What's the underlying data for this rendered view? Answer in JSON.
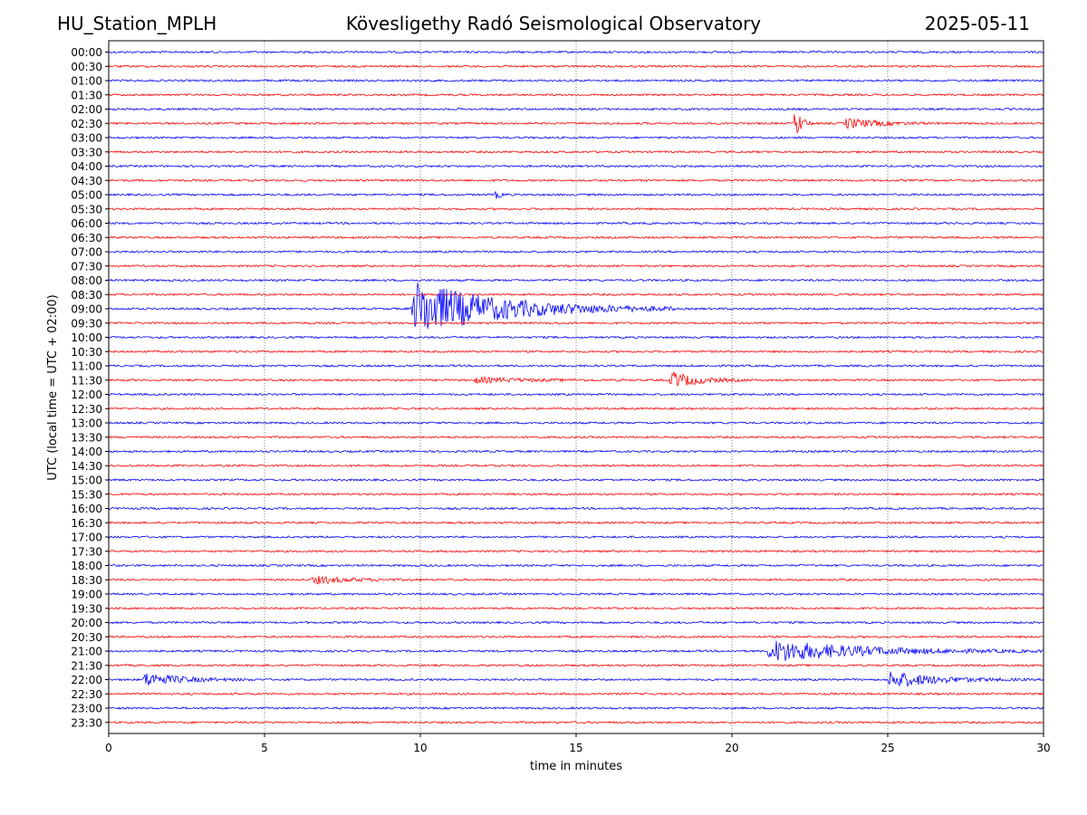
{
  "header": {
    "station": "HU_Station_MPLH",
    "observatory": "Kövesligethy Radó Seismological Observatory",
    "date": "2025-05-11"
  },
  "chart_data": {
    "type": "line",
    "title": "Kövesligethy Radó Seismological Observatory",
    "xlabel": "time in minutes",
    "ylabel": "UTC (local time = UTC + 02:00)",
    "xlim": [
      0,
      30
    ],
    "xticks": [
      0,
      5,
      10,
      15,
      20,
      25,
      30
    ],
    "xgrid": [
      5,
      10,
      15,
      20,
      25
    ],
    "row_colors": [
      "#0000ff",
      "#ff0000"
    ],
    "rows": [
      "00:00",
      "00:30",
      "01:00",
      "01:30",
      "02:00",
      "02:30",
      "03:00",
      "03:30",
      "04:00",
      "04:30",
      "05:00",
      "05:30",
      "06:00",
      "06:30",
      "07:00",
      "07:30",
      "08:00",
      "08:30",
      "09:00",
      "09:30",
      "10:00",
      "10:30",
      "11:00",
      "11:30",
      "12:00",
      "12:30",
      "13:00",
      "13:30",
      "14:00",
      "14:30",
      "15:00",
      "15:30",
      "16:00",
      "16:30",
      "17:00",
      "17:30",
      "18:00",
      "18:30",
      "19:00",
      "19:30",
      "20:00",
      "20:30",
      "21:00",
      "21:30",
      "22:00",
      "22:30",
      "23:00",
      "23:30"
    ],
    "events": [
      {
        "row": "02:30",
        "start": 22.0,
        "duration": 0.6,
        "amplitude": 2.2
      },
      {
        "row": "02:30",
        "start": 23.6,
        "duration": 3.2,
        "amplitude": 0.6
      },
      {
        "row": "05:00",
        "start": 12.4,
        "duration": 0.5,
        "amplitude": 0.5
      },
      {
        "row": "09:00",
        "start": 9.7,
        "duration": 8.5,
        "amplitude": 3.3
      },
      {
        "row": "11:30",
        "start": 11.7,
        "duration": 5.0,
        "amplitude": 0.3
      },
      {
        "row": "11:30",
        "start": 18.0,
        "duration": 2.6,
        "amplitude": 1.0
      },
      {
        "row": "18:30",
        "start": 6.5,
        "duration": 3.5,
        "amplitude": 0.45
      },
      {
        "row": "21:00",
        "start": 21.1,
        "duration": 9.0,
        "amplitude": 1.3
      },
      {
        "row": "22:00",
        "start": 1.1,
        "duration": 3.6,
        "amplitude": 0.8
      },
      {
        "row": "22:00",
        "start": 25.0,
        "duration": 4.5,
        "amplitude": 1.0
      }
    ]
  }
}
